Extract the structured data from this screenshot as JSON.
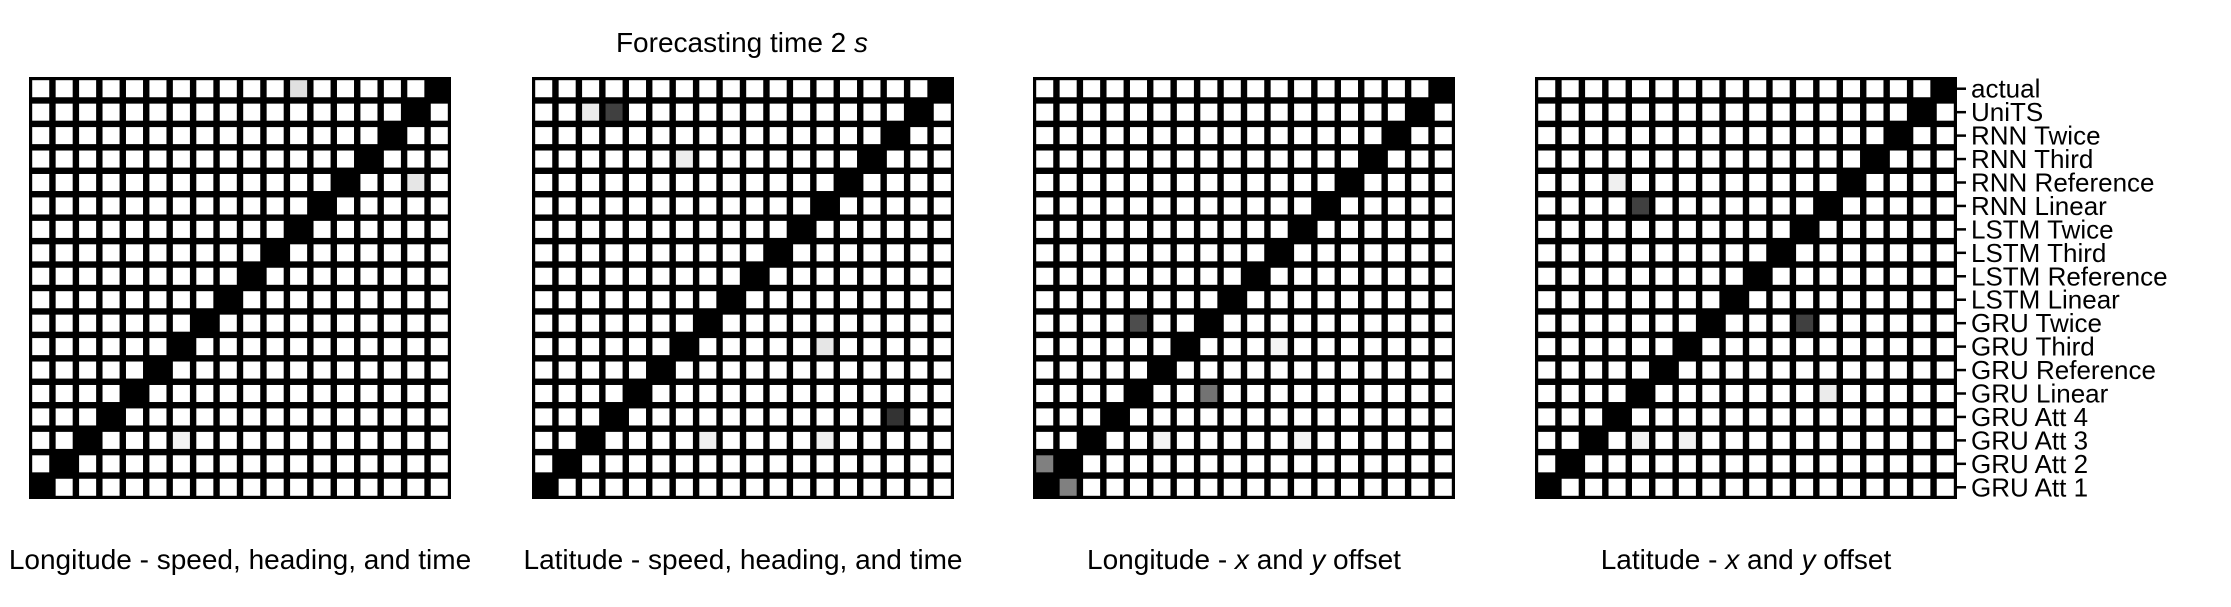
{
  "figure": {
    "title_prefix": "Forecasting time 2 ",
    "title_unit": "s"
  },
  "chart_data": {
    "type": "heatmap",
    "row_labels_bottom_to_top": [
      "GRU Att 1",
      "GRU Att 2",
      "GRU Att 3",
      "GRU Att 4",
      "GRU Linear",
      "GRU Reference",
      "GRU Third",
      "GRU Twice",
      "LSTM Linear",
      "LSTM Reference",
      "LSTM Third",
      "LSTM Twice",
      "RNN Linear",
      "RNN Reference",
      "RNN Third",
      "RNN Twice",
      "UniTS",
      "actual"
    ],
    "value_scale": "0 = white, 1 = black; diagonal cells are 1",
    "grid": true,
    "panels": [
      {
        "xlabel_parts": [
          "Longitude - speed, heading, and time"
        ],
        "xlabel_italic": [
          false
        ],
        "diagonal": 1,
        "off_diagonal": [
          {
            "row": 17,
            "col": 11,
            "value": 0.12
          },
          {
            "row": 13,
            "col": 16,
            "value": 0.1
          },
          {
            "row": 2,
            "col": 6,
            "value": 0.05
          }
        ]
      },
      {
        "xlabel_parts": [
          "Latitude - speed, heading, and time"
        ],
        "xlabel_italic": [
          false
        ],
        "diagonal": 1,
        "off_diagonal": [
          {
            "row": 16,
            "col": 2,
            "value": 0.08
          },
          {
            "row": 16,
            "col": 3,
            "value": 0.75
          },
          {
            "row": 14,
            "col": 6,
            "value": 0.07
          },
          {
            "row": 6,
            "col": 12,
            "value": 0.1
          },
          {
            "row": 3,
            "col": 15,
            "value": 0.8
          },
          {
            "row": 2,
            "col": 7,
            "value": 0.06
          },
          {
            "row": 2,
            "col": 12,
            "value": 0.06
          }
        ]
      },
      {
        "xlabel_parts": [
          "Longitude - ",
          "x",
          " and ",
          "y",
          " offset"
        ],
        "xlabel_italic": [
          false,
          true,
          false,
          true,
          false
        ],
        "diagonal": 1,
        "off_diagonal": [
          {
            "row": 7,
            "col": 4,
            "value": 0.7
          },
          {
            "row": 4,
            "col": 7,
            "value": 0.55
          },
          {
            "row": 1,
            "col": 0,
            "value": 0.5
          },
          {
            "row": 0,
            "col": 1,
            "value": 0.5
          },
          {
            "row": 6,
            "col": 10,
            "value": 0.04
          },
          {
            "row": 2,
            "col": 5,
            "value": 0.04
          },
          {
            "row": 2,
            "col": 11,
            "value": 0.04
          }
        ]
      },
      {
        "xlabel_parts": [
          "Latitude - ",
          "x",
          " and ",
          "y",
          " offset"
        ],
        "xlabel_italic": [
          false,
          true,
          false,
          true,
          false
        ],
        "diagonal": 1,
        "off_diagonal": [
          {
            "row": 12,
            "col": 4,
            "value": 0.75
          },
          {
            "row": 7,
            "col": 11,
            "value": 0.75
          },
          {
            "row": 13,
            "col": 3,
            "value": 0.06
          },
          {
            "row": 4,
            "col": 12,
            "value": 0.08
          },
          {
            "row": 2,
            "col": 4,
            "value": 0.05
          },
          {
            "row": 2,
            "col": 6,
            "value": 0.05
          }
        ]
      }
    ]
  }
}
